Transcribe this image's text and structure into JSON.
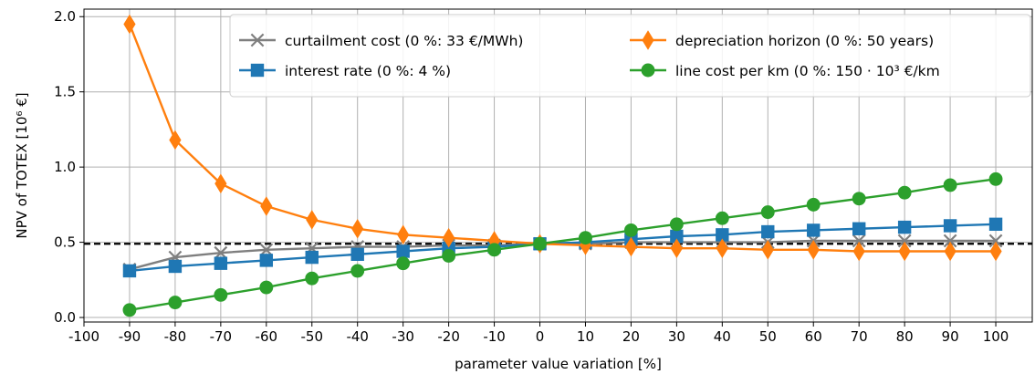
{
  "chart_data": {
    "type": "line",
    "xlabel": "parameter value variation [%]",
    "ylabel": "NPV of TOTEX [10⁶ €]",
    "xlim": [
      -100,
      108
    ],
    "ylim": [
      -0.03,
      2.05
    ],
    "x_ticks": [
      "-100",
      "-90",
      "-80",
      "-70",
      "-60",
      "-50",
      "-40",
      "-30",
      "-20",
      "-10",
      "0",
      "10",
      "20",
      "30",
      "40",
      "50",
      "60",
      "70",
      "80",
      "90",
      "100"
    ],
    "y_ticks": [
      "0.0",
      "0.5",
      "1.0",
      "1.5",
      "2.0"
    ],
    "grid": true,
    "legend_position": "top-right",
    "reference_line": {
      "y": 0.49,
      "style": "dashed",
      "color": "#000000"
    },
    "x": [
      -90,
      -80,
      -70,
      -60,
      -50,
      -40,
      -30,
      -20,
      -10,
      0,
      10,
      20,
      30,
      40,
      50,
      60,
      70,
      80,
      90,
      100
    ],
    "series": [
      {
        "name": "curtailment cost (0 %: 33 €/MWh)",
        "color": "#7f7f7f",
        "marker": "x",
        "values": [
          0.32,
          0.4,
          0.43,
          0.45,
          0.46,
          0.47,
          0.47,
          0.48,
          0.48,
          0.49,
          0.49,
          0.5,
          0.5,
          0.5,
          0.5,
          0.51,
          0.51,
          0.51,
          0.51,
          0.51
        ]
      },
      {
        "name": "interest rate (0 %: 4 %)",
        "color": "#1f77b4",
        "marker": "square",
        "values": [
          0.31,
          0.34,
          0.36,
          0.38,
          0.4,
          0.42,
          0.44,
          0.46,
          0.47,
          0.49,
          0.5,
          0.52,
          0.54,
          0.55,
          0.57,
          0.58,
          0.59,
          0.6,
          0.61,
          0.62
        ]
      },
      {
        "name": "depreciation horizon (0 %: 50 years)",
        "color": "#ff7f0e",
        "marker": "diamond",
        "values": [
          1.95,
          1.18,
          0.89,
          0.74,
          0.65,
          0.59,
          0.55,
          0.53,
          0.51,
          0.49,
          0.48,
          0.47,
          0.46,
          0.46,
          0.45,
          0.45,
          0.44,
          0.44,
          0.44,
          0.44
        ]
      },
      {
        "name": "line cost per km (0 %: 150 · 10³ €/km",
        "color": "#2ca02c",
        "marker": "circle",
        "values": [
          0.05,
          0.1,
          0.15,
          0.2,
          0.26,
          0.31,
          0.36,
          0.41,
          0.45,
          0.49,
          0.53,
          0.58,
          0.62,
          0.66,
          0.7,
          0.75,
          0.79,
          0.83,
          0.88,
          0.92
        ]
      }
    ]
  }
}
